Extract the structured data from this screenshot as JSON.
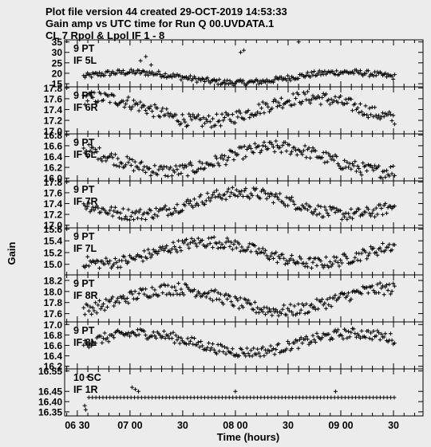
{
  "header": {
    "line1": "Plot file version 44  created 29-OCT-2019 14:53:33",
    "line2": "Gain amp vs UTC time for Run Q 00.UVDATA.1",
    "line3": "CL 7  Rpol & Lpol  IF 1 - 8"
  },
  "chart_data": {
    "type": "scatter",
    "xlabel": "Time (hours)",
    "ylabel": "Gain",
    "x_ticks": [
      "06 30",
      "07 00",
      "30",
      "08 00",
      "30",
      "09 00",
      "30"
    ],
    "x_tick_hours": [
      6.5,
      7.0,
      7.5,
      8.0,
      8.5,
      9.0,
      9.5
    ],
    "xlim": [
      6.38,
      9.78
    ],
    "data_x_range": [
      6.56,
      9.52
    ],
    "panels": [
      {
        "label1": "9 PT",
        "label2": "IF 5L",
        "ylim": [
          13.5,
          36
        ],
        "yticks": [
          "35",
          "30",
          "25",
          "20",
          "15"
        ],
        "ytick_values": [
          35,
          30,
          25,
          20,
          15
        ],
        "base": 18,
        "amp": 2.5
      },
      {
        "label1": "9 PT",
        "label2": "IF 6R",
        "ylim": [
          16.95,
          17.82
        ],
        "yticks": [
          "17.8",
          "17.6",
          "17.4",
          "17.2",
          "17.0"
        ],
        "ytick_values": [
          17.8,
          17.6,
          17.4,
          17.2,
          17.0
        ],
        "base": 17.4,
        "amp": 0.22
      },
      {
        "label1": "9 PT",
        "label2": "IF 6L",
        "ylim": [
          15.95,
          16.82
        ],
        "yticks": [
          "16.8",
          "16.6",
          "16.4",
          "16.2",
          "16.0"
        ],
        "ytick_values": [
          16.8,
          16.6,
          16.4,
          16.2,
          16.0
        ],
        "base": 16.35,
        "amp": 0.22
      },
      {
        "label1": "9 PT",
        "label2": "IF 7R",
        "ylim": [
          16.95,
          17.82
        ],
        "yticks": [
          "17.8",
          "17.6",
          "17.4",
          "17.2",
          "17.0"
        ],
        "ytick_values": [
          17.8,
          17.6,
          17.4,
          17.2,
          17.0
        ],
        "base": 17.4,
        "amp": 0.2
      },
      {
        "label1": "9 PT",
        "label2": "IF 7L",
        "ylim": [
          14.82,
          15.62
        ],
        "yticks": [
          "15.6",
          "15.4",
          "15.2",
          "15.0"
        ],
        "ytick_values": [
          15.6,
          15.4,
          15.2,
          15.0
        ],
        "base": 15.2,
        "amp": 0.18
      },
      {
        "label1": "9 PT",
        "label2": "IF 8R",
        "ylim": [
          17.45,
          18.3
        ],
        "yticks": [
          "18.2",
          "18.0",
          "17.8",
          "17.6"
        ],
        "ytick_values": [
          18.2,
          18.0,
          17.8,
          17.6
        ],
        "base": 17.85,
        "amp": 0.2
      },
      {
        "label1": "9 PT",
        "label2": "IF 8L",
        "ylim": [
          16.15,
          17.05
        ],
        "yticks": [
          "17.0",
          "16.8",
          "16.6",
          "16.4",
          "16.2"
        ],
        "ytick_values": [
          17.0,
          16.8,
          16.6,
          16.4,
          16.2
        ],
        "base": 16.65,
        "amp": 0.18
      },
      {
        "label1": "10 SC",
        "label2": "IF 1R",
        "ylim": [
          16.33,
          16.56
        ],
        "yticks": [
          "16.55",
          "16.45",
          "16.40",
          "16.35"
        ],
        "ytick_values": [
          16.55,
          16.45,
          16.4,
          16.35
        ],
        "base": 16.42,
        "amp": 0.0
      }
    ]
  },
  "colors": {
    "background": "#ececec",
    "ink": "#000000"
  }
}
